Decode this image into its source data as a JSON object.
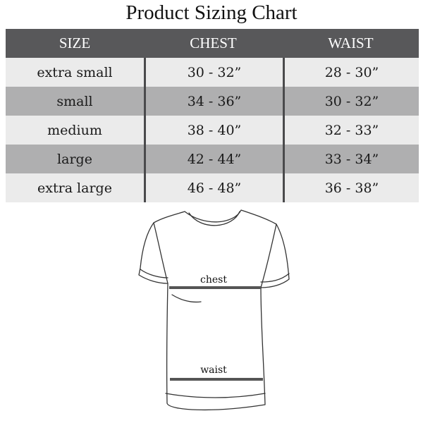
{
  "title": "Product Sizing Chart",
  "table": {
    "headers": [
      "SIZE",
      "CHEST",
      "WAIST"
    ],
    "rows": [
      {
        "size": "extra small",
        "chest": "30 - 32”",
        "waist": "28 - 30”"
      },
      {
        "size": "small",
        "chest": "34 - 36”",
        "waist": "30 - 32”"
      },
      {
        "size": "medium",
        "chest": "38 - 40”",
        "waist": "32 - 33”"
      },
      {
        "size": "large",
        "chest": "42 - 44”",
        "waist": "33 - 34”"
      },
      {
        "size": "extra large",
        "chest": "46 - 48”",
        "waist": "36 - 38”"
      }
    ]
  },
  "diagram": {
    "chest_label": "chest",
    "waist_label": "waist"
  },
  "colors": {
    "header": "#58585a",
    "row_light": "#ebebeb",
    "row_dark": "#afafb0",
    "divider": "#4a4a4c"
  }
}
